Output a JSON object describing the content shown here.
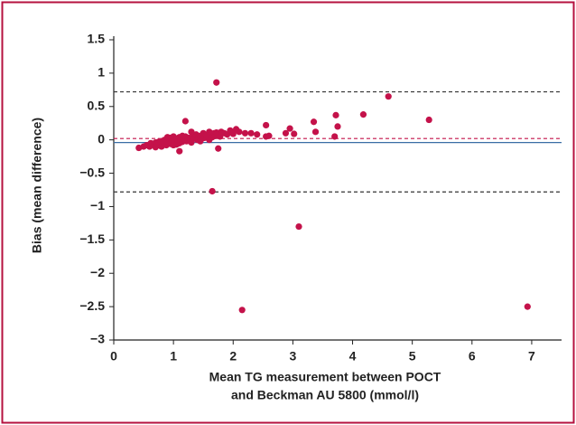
{
  "chart_data": {
    "type": "scatter",
    "ylabel": "Bias (mean difference)",
    "xlabel": [
      "Mean TG measurement between POCT",
      "and Beckman AU 5800 (mmol/l)"
    ],
    "x": [
      0.42,
      0.5,
      0.55,
      0.6,
      0.62,
      0.65,
      0.7,
      0.72,
      0.75,
      0.78,
      0.8,
      0.82,
      0.85,
      0.85,
      0.88,
      0.9,
      0.92,
      0.95,
      0.95,
      0.98,
      1.0,
      1.0,
      1.02,
      1.05,
      1.05,
      1.08,
      1.1,
      1.1,
      1.12,
      1.15,
      1.15,
      1.18,
      1.2,
      1.2,
      1.22,
      1.25,
      1.28,
      1.3,
      1.32,
      1.35,
      1.38,
      1.4,
      1.42,
      1.45,
      1.48,
      1.5,
      1.52,
      1.55,
      1.58,
      1.6,
      1.62,
      1.65,
      1.68,
      1.7,
      1.72,
      1.75,
      1.78,
      1.8,
      1.85,
      1.9,
      1.95,
      2.0,
      2.05,
      2.1,
      2.2,
      2.3,
      2.4,
      2.55,
      2.55,
      2.6,
      2.88,
      2.95,
      3.02,
      3.35,
      3.38,
      3.7,
      3.72,
      3.75,
      4.18,
      4.6,
      5.28,
      1.72,
      1.2,
      1.1,
      1.75,
      1.65,
      3.1,
      2.15,
      6.93,
      1.0,
      0.9,
      1.3,
      1.45,
      1.6,
      0.7
    ],
    "values": [
      -0.12,
      -0.1,
      -0.08,
      -0.1,
      -0.05,
      -0.07,
      -0.04,
      -0.09,
      -0.03,
      -0.06,
      -0.1,
      -0.02,
      -0.05,
      0.0,
      -0.08,
      -0.03,
      0.02,
      -0.06,
      0.03,
      -0.01,
      0.05,
      -0.04,
      0.0,
      -0.07,
      0.02,
      -0.02,
      0.04,
      -0.05,
      0.01,
      0.06,
      -0.03,
      0.02,
      0.0,
      0.05,
      -0.02,
      0.03,
      0.01,
      -0.04,
      0.05,
      0.02,
      0.08,
      0.0,
      0.04,
      0.06,
      0.02,
      0.1,
      0.03,
      0.07,
      0.05,
      0.12,
      0.08,
      0.04,
      0.1,
      0.06,
      0.11,
      0.09,
      0.05,
      0.12,
      0.1,
      0.08,
      0.14,
      0.09,
      0.16,
      0.12,
      0.1,
      0.1,
      0.08,
      0.22,
      0.05,
      0.06,
      0.1,
      0.17,
      0.09,
      0.27,
      0.12,
      0.05,
      0.37,
      0.2,
      0.38,
      0.65,
      0.3,
      0.86,
      0.28,
      -0.17,
      -0.13,
      -0.77,
      -1.3,
      -2.55,
      -2.5,
      -0.08,
      0.04,
      0.12,
      -0.02,
      0.0,
      -0.11
    ],
    "color": "#c4124a",
    "hlines": [
      {
        "value": 0.72,
        "color": "#333333",
        "style": "dashed"
      },
      {
        "value": 0.02,
        "color": "#c4124a",
        "style": "dashed"
      },
      {
        "value": -0.04,
        "color": "#3a6ea5",
        "style": "solid"
      },
      {
        "value": -0.78,
        "color": "#333333",
        "style": "dashed"
      }
    ],
    "xlim": [
      0,
      7.5
    ],
    "xticks": [
      0,
      1,
      2,
      3,
      4,
      5,
      6,
      7
    ],
    "ylim": [
      -3,
      1.5
    ],
    "yticks": [
      1.5,
      1,
      0.5,
      0,
      {
        "value": -0.5,
        "label": "−0.5"
      },
      {
        "value": -1,
        "label": "−1"
      },
      {
        "value": -1.5,
        "label": "−1.5"
      },
      {
        "value": -2,
        "label": "−2"
      },
      {
        "value": -2.5,
        "label": "−2.5"
      },
      {
        "value": -3,
        "label": "−3"
      }
    ]
  }
}
